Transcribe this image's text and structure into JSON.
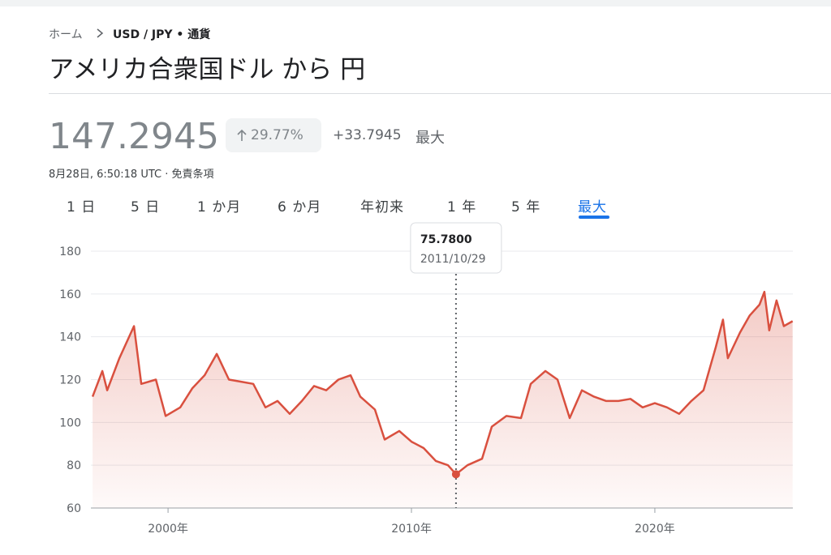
{
  "header": {
    "breadcrumb_home": "ホーム",
    "breadcrumb_pair": "USD / JPY • 通貨",
    "title": "アメリカ合衆国ドル から 円"
  },
  "quote": {
    "price": "147.2945",
    "change_pct": "29.77%",
    "change": "+33.7945",
    "period": "最大",
    "timestamp": "8月28日, 6:50:18 UTC · 免責条項"
  },
  "tabs": [
    "1 日",
    "5 日",
    "1 か月",
    "6 か月",
    "年初来",
    "1 年",
    "5 年",
    "最大"
  ],
  "tooltip": {
    "value": "75.7800",
    "date": "2011/10/29"
  },
  "chart_data": {
    "type": "line",
    "color": "#d9503f",
    "grid": true,
    "x": [
      1996.9,
      1997.3,
      1997.5,
      1998.0,
      1998.6,
      1998.9,
      1999.5,
      1999.9,
      2000.5,
      2001.0,
      2001.5,
      2002.0,
      2002.5,
      2003.0,
      2003.5,
      2004.0,
      2004.5,
      2005.0,
      2005.5,
      2006.0,
      2006.5,
      2007.0,
      2007.5,
      2007.9,
      2008.5,
      2008.9,
      2009.5,
      2010.0,
      2010.5,
      2011.0,
      2011.5,
      2011.83,
      2012.3,
      2012.9,
      2013.3,
      2013.9,
      2014.5,
      2014.9,
      2015.5,
      2016.0,
      2016.5,
      2017.0,
      2017.5,
      2018.0,
      2018.5,
      2019.0,
      2019.5,
      2020.0,
      2020.5,
      2021.0,
      2021.5,
      2022.0,
      2022.5,
      2022.8,
      2023.0,
      2023.5,
      2023.9,
      2024.3,
      2024.5,
      2024.7,
      2025.0,
      2025.3,
      2025.66
    ],
    "values": [
      112,
      124,
      115,
      130,
      145,
      118,
      120,
      103,
      107,
      116,
      122,
      132,
      120,
      119,
      118,
      107,
      110,
      104,
      110,
      117,
      115,
      120,
      122,
      112,
      106,
      92,
      96,
      91,
      88,
      82,
      80,
      75.78,
      80,
      83,
      98,
      103,
      102,
      118,
      124,
      120,
      102,
      115,
      112,
      110,
      110,
      111,
      107,
      109,
      107,
      104,
      110,
      115,
      135,
      148,
      130,
      142,
      150,
      155,
      161,
      143,
      157,
      145,
      147.29
    ],
    "xlim": [
      1996.83,
      2025.67
    ],
    "ylim": [
      60,
      180
    ],
    "yticks": [
      60,
      80,
      100,
      120,
      140,
      160,
      180
    ],
    "xticks": [
      {
        "value": 2000,
        "label": "2000年"
      },
      {
        "value": 2010,
        "label": "2010年"
      },
      {
        "value": 2020,
        "label": "2020年"
      }
    ]
  }
}
